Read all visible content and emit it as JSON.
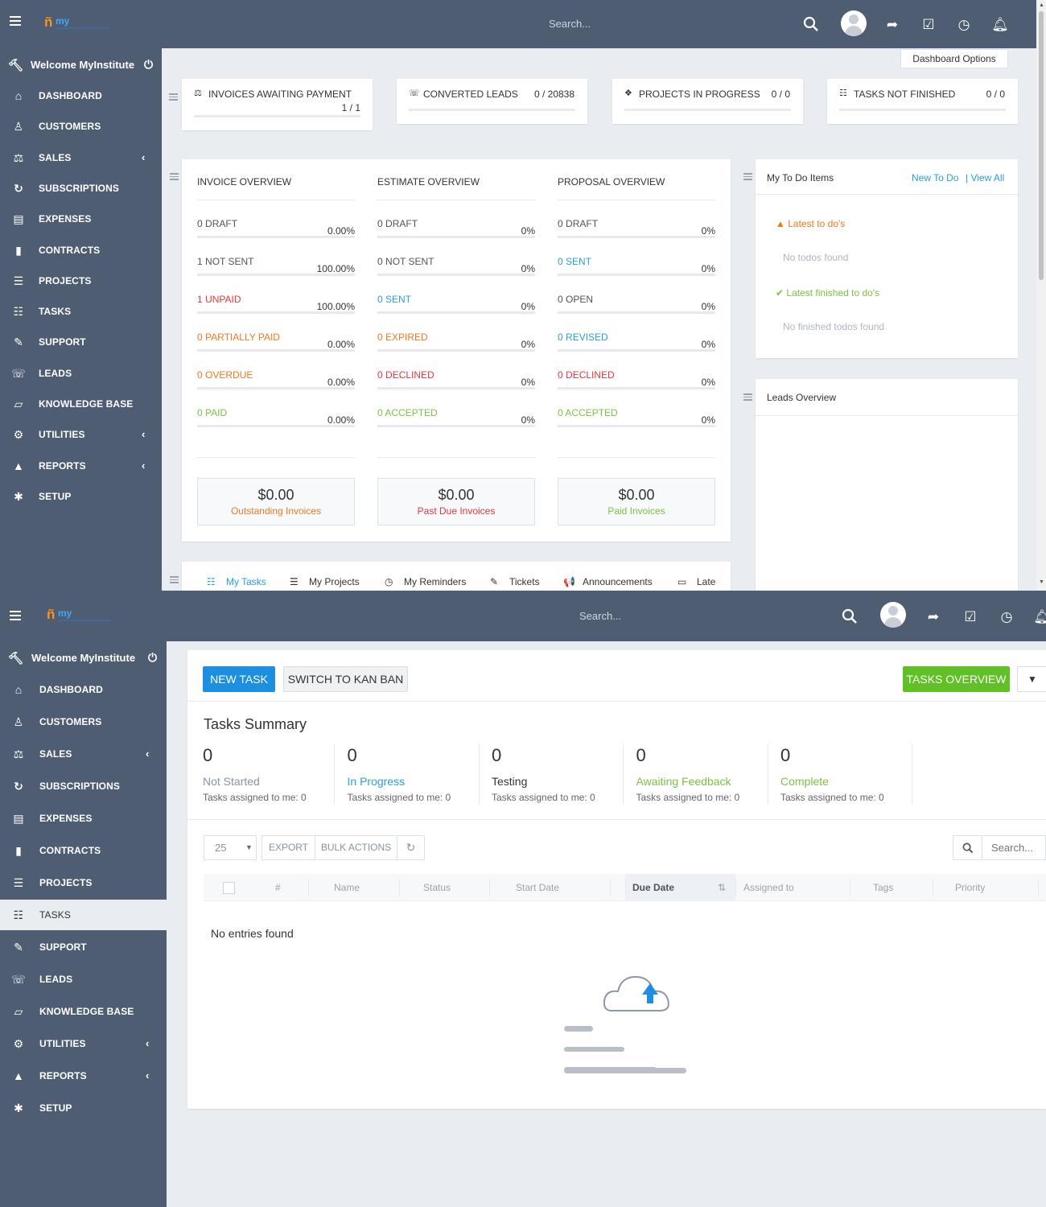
{
  "header": {
    "logo_text": "my",
    "search_placeholder": "Search...",
    "icons": [
      "search-icon",
      "avatar",
      "share-icon",
      "checkbox-icon",
      "clock-icon",
      "bell-icon"
    ]
  },
  "sidebar": {
    "welcome": "Welcome MyInstitute",
    "items": [
      {
        "label": "DASHBOARD",
        "icon": "home-icon",
        "glyph": "⌂",
        "chevron": false
      },
      {
        "label": "CUSTOMERS",
        "icon": "user-icon",
        "glyph": "♙",
        "chevron": false
      },
      {
        "label": "SALES",
        "icon": "balance-scale-icon",
        "glyph": "⚖",
        "chevron": true
      },
      {
        "label": "SUBSCRIPTIONS",
        "icon": "refresh-icon",
        "glyph": "↻",
        "chevron": false
      },
      {
        "label": "EXPENSES",
        "icon": "file-text-icon",
        "glyph": "▤",
        "chevron": false
      },
      {
        "label": "CONTRACTS",
        "icon": "file-icon",
        "glyph": "▮",
        "chevron": false
      },
      {
        "label": "PROJECTS",
        "icon": "bars-icon",
        "glyph": "☰",
        "chevron": false
      },
      {
        "label": "TASKS",
        "icon": "tasks-icon",
        "glyph": "☷",
        "chevron": false
      },
      {
        "label": "SUPPORT",
        "icon": "ticket-icon",
        "glyph": "✎",
        "chevron": false
      },
      {
        "label": "LEADS",
        "icon": "tty-icon",
        "glyph": "☏",
        "chevron": false
      },
      {
        "label": "KNOWLEDGE BASE",
        "icon": "folder-open-icon",
        "glyph": "▱",
        "chevron": false
      },
      {
        "label": "UTILITIES",
        "icon": "cogs-icon",
        "glyph": "⚙",
        "chevron": true
      },
      {
        "label": "REPORTS",
        "icon": "area-chart-icon",
        "glyph": "▲",
        "chevron": true
      },
      {
        "label": "SETUP",
        "icon": "cog-icon",
        "glyph": "✱",
        "chevron": false
      }
    ]
  },
  "dashboard": {
    "options_label": "Dashboard Options",
    "stats": [
      {
        "label": "INVOICES AWAITING PAYMENT",
        "value": "1 / 1",
        "icon": "balance-scale-icon",
        "progress": 1.0
      },
      {
        "label": "CONVERTED LEADS",
        "value": "0 / 20838",
        "icon": "tty-icon",
        "progress": 0
      },
      {
        "label": "PROJECTS IN PROGRESS",
        "value": "0 / 0",
        "icon": "cubes-icon",
        "progress": 0
      },
      {
        "label": "TASKS NOT FINISHED",
        "value": "0 / 0",
        "icon": "tasks-icon",
        "progress": 0
      }
    ],
    "overviews": [
      {
        "title": "INVOICE OVERVIEW",
        "rows": [
          {
            "count": "0",
            "status": "DRAFT",
            "pct": "0.00%",
            "color": "gray"
          },
          {
            "count": "1",
            "status": "NOT SENT",
            "pct": "100.00%",
            "color": "gray"
          },
          {
            "count": "1",
            "status": "UNPAID",
            "pct": "100.00%",
            "color": "red"
          },
          {
            "count": "0",
            "status": "PARTIALLY PAID",
            "pct": "0.00%",
            "color": "orange"
          },
          {
            "count": "0",
            "status": "OVERDUE",
            "pct": "0.00%",
            "color": "orange"
          },
          {
            "count": "0",
            "status": "PAID",
            "pct": "0.00%",
            "color": "green"
          }
        ]
      },
      {
        "title": "ESTIMATE OVERVIEW",
        "rows": [
          {
            "count": "0",
            "status": "DRAFT",
            "pct": "0%",
            "color": "gray"
          },
          {
            "count": "0",
            "status": "NOT SENT",
            "pct": "0%",
            "color": "gray"
          },
          {
            "count": "0",
            "status": "SENT",
            "pct": "0%",
            "color": "blue"
          },
          {
            "count": "0",
            "status": "EXPIRED",
            "pct": "0%",
            "color": "orange"
          },
          {
            "count": "0",
            "status": "DECLINED",
            "pct": "0%",
            "color": "red"
          },
          {
            "count": "0",
            "status": "ACCEPTED",
            "pct": "0%",
            "color": "green"
          }
        ]
      },
      {
        "title": "PROPOSAL OVERVIEW",
        "rows": [
          {
            "count": "0",
            "status": "DRAFT",
            "pct": "0%",
            "color": "gray"
          },
          {
            "count": "0",
            "status": "SENT",
            "pct": "0%",
            "color": "blue"
          },
          {
            "count": "0",
            "status": "OPEN",
            "pct": "0%",
            "color": "gray"
          },
          {
            "count": "0",
            "status": "REVISED",
            "pct": "0%",
            "color": "blue"
          },
          {
            "count": "0",
            "status": "DECLINED",
            "pct": "0%",
            "color": "red"
          },
          {
            "count": "0",
            "status": "ACCEPTED",
            "pct": "0%",
            "color": "green"
          }
        ]
      }
    ],
    "totals": [
      {
        "value": "$0.00",
        "label": "Outstanding Invoices",
        "color": "orange"
      },
      {
        "value": "$0.00",
        "label": "Past Due Invoices",
        "color": "red"
      },
      {
        "value": "$0.00",
        "label": "Paid Invoices",
        "color": "green"
      }
    ],
    "todo": {
      "title": "My To Do Items",
      "new_link": "New To Do",
      "view_all_link": "| View All",
      "latest_label": "Latest to do's",
      "latest_empty": "No todos found",
      "finished_label": "Latest finished to do's",
      "finished_empty": "No finished todos found"
    },
    "leads_overview_title": "Leads Overview",
    "bottom_tabs": [
      {
        "label": "My Tasks",
        "icon": "tasks-icon",
        "glyph": "☷",
        "active": true
      },
      {
        "label": "My Projects",
        "icon": "bars-icon",
        "glyph": "☰",
        "active": false
      },
      {
        "label": "My Reminders",
        "icon": "clock-icon",
        "glyph": "◷",
        "active": false
      },
      {
        "label": "Tickets",
        "icon": "ticket-icon",
        "glyph": "✎",
        "active": false
      },
      {
        "label": "Announcements",
        "icon": "bullhorn-icon",
        "glyph": "📢",
        "active": false
      },
      {
        "label": "Late",
        "icon": "window-icon",
        "glyph": "▭",
        "active": false
      }
    ]
  },
  "tasks_page": {
    "new_task": "NEW TASK",
    "switch_kanban": "SWITCH TO KAN BAN",
    "tasks_overview": "TASKS OVERVIEW",
    "summary_title": "Tasks Summary",
    "summary": [
      {
        "count": "0",
        "label": "Not Started",
        "sub": "Tasks assigned to me: 0",
        "color": "gray"
      },
      {
        "count": "0",
        "label": "In Progress",
        "sub": "Tasks assigned to me: 0",
        "color": "blue"
      },
      {
        "count": "0",
        "label": "Testing",
        "sub": "Tasks assigned to me: 0",
        "color": "dark"
      },
      {
        "count": "0",
        "label": "Awaiting Feedback",
        "sub": "Tasks assigned to me: 0",
        "color": "green"
      },
      {
        "count": "0",
        "label": "Complete",
        "sub": "Tasks assigned to me: 0",
        "color": "green"
      }
    ],
    "page_length": "25",
    "export_label": "EXPORT",
    "bulk_label": "BULK ACTIONS",
    "search_placeholder": "Search...",
    "columns": [
      "#",
      "Name",
      "Status",
      "Start Date",
      "Due Date",
      "Assigned to",
      "Tags",
      "Priority"
    ],
    "empty_message": "No entries found"
  }
}
